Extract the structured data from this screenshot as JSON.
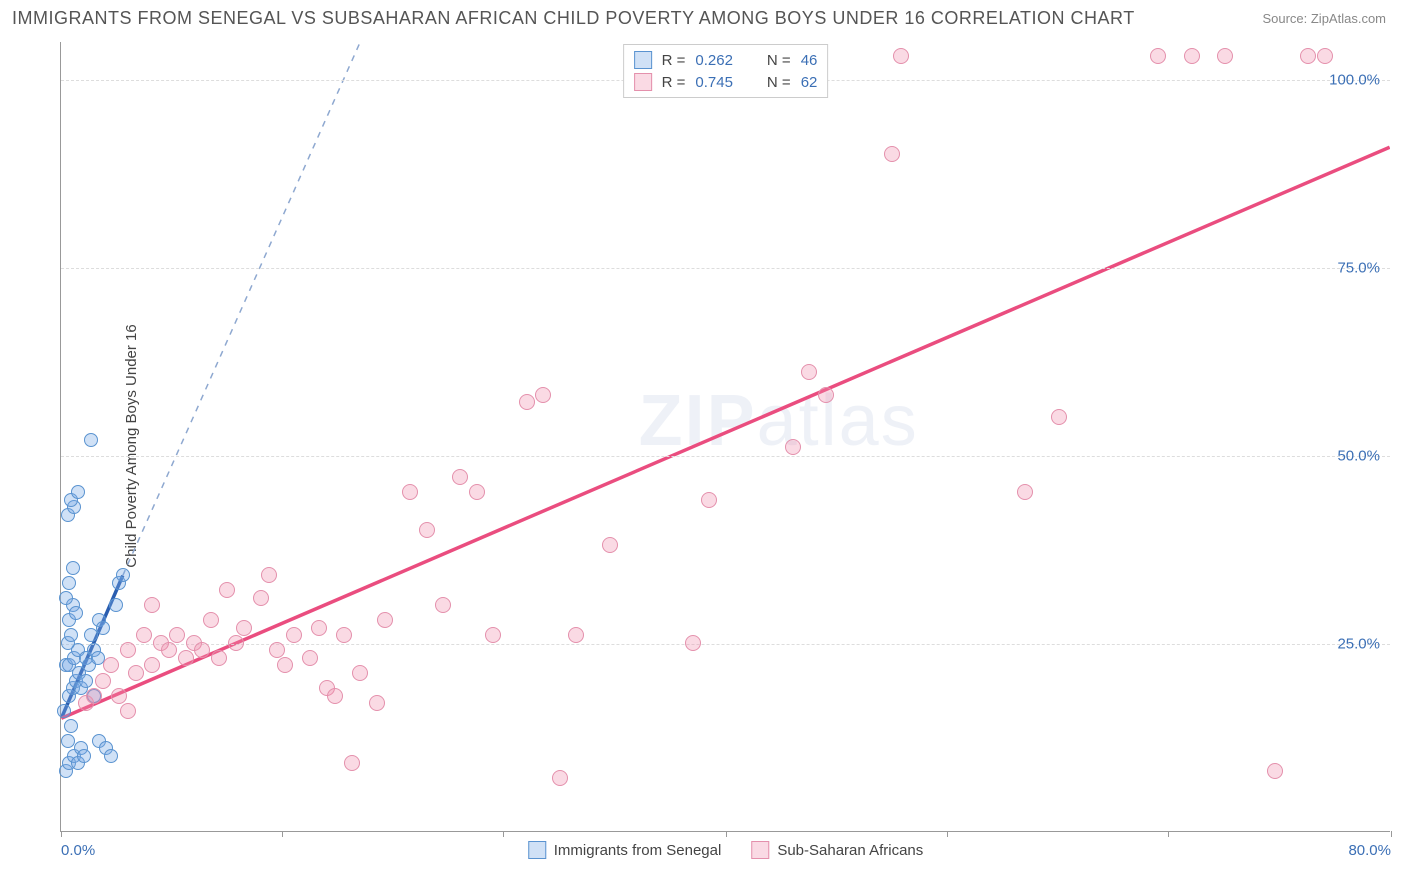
{
  "header": {
    "title": "IMMIGRANTS FROM SENEGAL VS SUBSAHARAN AFRICAN CHILD POVERTY AMONG BOYS UNDER 16 CORRELATION CHART",
    "source": "Source: ZipAtlas.com"
  },
  "chart": {
    "type": "scatter",
    "ylabel": "Child Poverty Among Boys Under 16",
    "xlim": [
      0,
      80
    ],
    "ylim": [
      0,
      105
    ],
    "xtick_labels": {
      "0": "0.0%",
      "80": "80.0%"
    },
    "xtick_positions": [
      0,
      13.3,
      26.6,
      40,
      53.3,
      66.6,
      80
    ],
    "ytick_labels": {
      "25": "25.0%",
      "50": "50.0%",
      "75": "75.0%",
      "100": "100.0%"
    },
    "ytick_positions": [
      25,
      50,
      75,
      100
    ],
    "grid_color": "#dddddd",
    "axis_color": "#999999",
    "background_color": "#ffffff",
    "watermark": "ZIPatlas",
    "series": [
      {
        "name": "Immigrants from Senegal",
        "fill_color": "rgba(120,170,230,0.35)",
        "stroke_color": "#5a93d0",
        "marker_radius": 7,
        "trend_color": "#2a5db0",
        "trend_dash_color": "#8ea8d0",
        "trend_solid": {
          "x1": 0,
          "y1": 15,
          "x2": 3.7,
          "y2": 34
        },
        "trend_dash": {
          "x1": 3.7,
          "y1": 34,
          "x2": 18,
          "y2": 105
        },
        "R": "0.262",
        "N": "46",
        "points": [
          [
            0.3,
            8
          ],
          [
            0.5,
            9
          ],
          [
            0.8,
            10
          ],
          [
            1.0,
            9
          ],
          [
            1.2,
            11
          ],
          [
            1.4,
            10
          ],
          [
            0.4,
            12
          ],
          [
            0.6,
            14
          ],
          [
            0.2,
            16
          ],
          [
            0.5,
            18
          ],
          [
            0.7,
            19
          ],
          [
            0.9,
            20
          ],
          [
            1.1,
            21
          ],
          [
            0.3,
            22
          ],
          [
            0.5,
            22
          ],
          [
            0.8,
            23
          ],
          [
            1.0,
            24
          ],
          [
            0.4,
            25
          ],
          [
            0.6,
            26
          ],
          [
            1.5,
            23
          ],
          [
            1.7,
            22
          ],
          [
            2.0,
            24
          ],
          [
            2.2,
            23
          ],
          [
            0.5,
            28
          ],
          [
            0.7,
            30
          ],
          [
            0.9,
            29
          ],
          [
            0.3,
            31
          ],
          [
            0.5,
            33
          ],
          [
            0.7,
            35
          ],
          [
            0.4,
            42
          ],
          [
            0.8,
            43
          ],
          [
            0.6,
            44
          ],
          [
            1.0,
            45
          ],
          [
            1.8,
            52
          ],
          [
            1.2,
            19
          ],
          [
            1.5,
            20
          ],
          [
            1.8,
            26
          ],
          [
            2.3,
            28
          ],
          [
            2.5,
            27
          ],
          [
            2.0,
            18
          ],
          [
            2.3,
            12
          ],
          [
            2.7,
            11
          ],
          [
            3.0,
            10
          ],
          [
            3.3,
            30
          ],
          [
            3.5,
            33
          ],
          [
            3.7,
            34
          ]
        ]
      },
      {
        "name": "Sub-Saharan Africans",
        "fill_color": "rgba(240,140,170,0.32)",
        "stroke_color": "#e490ac",
        "marker_radius": 8,
        "trend_color": "#ea4d7f",
        "trend_solid": {
          "x1": 0,
          "y1": 15,
          "x2": 80,
          "y2": 91
        },
        "R": "0.745",
        "N": "62",
        "points": [
          [
            1.5,
            17
          ],
          [
            2,
            18
          ],
          [
            2.5,
            20
          ],
          [
            3,
            22
          ],
          [
            3.5,
            18
          ],
          [
            4,
            24
          ],
          [
            4.5,
            21
          ],
          [
            5,
            26
          ],
          [
            5.5,
            22
          ],
          [
            6,
            25
          ],
          [
            6.5,
            24
          ],
          [
            7,
            26
          ],
          [
            7.5,
            23
          ],
          [
            8,
            25
          ],
          [
            8.5,
            24
          ],
          [
            9,
            28
          ],
          [
            9.5,
            23
          ],
          [
            10,
            32
          ],
          [
            10.5,
            25
          ],
          [
            11,
            27
          ],
          [
            12,
            31
          ],
          [
            12.5,
            34
          ],
          [
            13,
            24
          ],
          [
            13.5,
            22
          ],
          [
            14,
            26
          ],
          [
            15,
            23
          ],
          [
            15.5,
            27
          ],
          [
            16,
            19
          ],
          [
            16.5,
            18
          ],
          [
            17,
            26
          ],
          [
            17.5,
            9
          ],
          [
            18,
            21
          ],
          [
            19,
            17
          ],
          [
            19.5,
            28
          ],
          [
            21,
            45
          ],
          [
            22,
            40
          ],
          [
            23,
            30
          ],
          [
            24,
            47
          ],
          [
            25,
            45
          ],
          [
            26,
            26
          ],
          [
            28,
            57
          ],
          [
            29,
            58
          ],
          [
            30,
            7
          ],
          [
            31,
            26
          ],
          [
            33,
            38
          ],
          [
            38,
            25
          ],
          [
            39,
            44
          ],
          [
            44,
            51
          ],
          [
            45,
            61
          ],
          [
            46,
            58
          ],
          [
            50,
            90
          ],
          [
            50.5,
            103
          ],
          [
            58,
            45
          ],
          [
            60,
            55
          ],
          [
            66,
            103
          ],
          [
            68,
            103
          ],
          [
            70,
            103
          ],
          [
            73,
            8
          ],
          [
            75,
            103
          ],
          [
            76,
            103
          ],
          [
            5.5,
            30
          ],
          [
            4,
            16
          ]
        ]
      }
    ],
    "legend_top": [
      {
        "swatch_fill": "rgba(120,170,230,0.35)",
        "swatch_stroke": "#5a93d0",
        "R_label": "R =",
        "R": "0.262",
        "N_label": "N =",
        "N": "46"
      },
      {
        "swatch_fill": "rgba(240,140,170,0.32)",
        "swatch_stroke": "#e490ac",
        "R_label": "R =",
        "R": "0.745",
        "N_label": "N =",
        "N": "62"
      }
    ],
    "legend_bottom": [
      {
        "swatch_fill": "rgba(120,170,230,0.35)",
        "swatch_stroke": "#5a93d0",
        "label": "Immigrants from Senegal"
      },
      {
        "swatch_fill": "rgba(240,140,170,0.32)",
        "swatch_stroke": "#e490ac",
        "label": "Sub-Saharan Africans"
      }
    ]
  }
}
